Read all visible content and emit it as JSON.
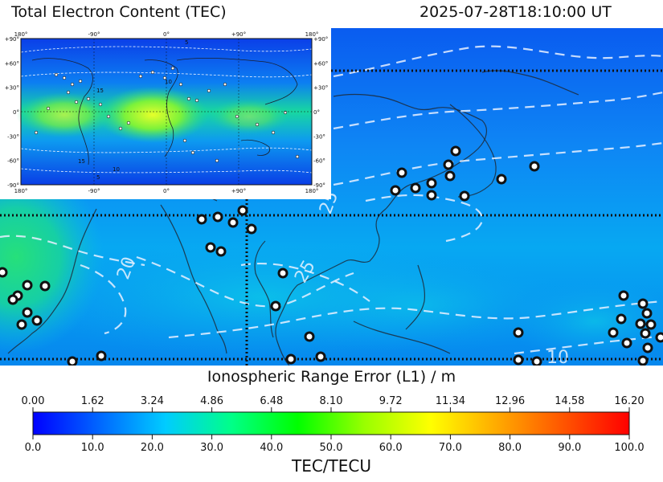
{
  "header": {
    "title": "Total Electron Content (TEC)",
    "timestamp": "2025-07-28T18:10:00 UT"
  },
  "map": {
    "contour_labels": [
      "20",
      "25",
      "25",
      "10"
    ]
  },
  "inset": {
    "lon_ticks": [
      "180°",
      "-90°",
      "0°",
      "+90°",
      "180°"
    ],
    "lat_ticks": [
      "+90°",
      "+60°",
      "+30°",
      "0°",
      "-30°",
      "-60°",
      "-90°"
    ],
    "contour_labels": [
      "5",
      "10",
      "15",
      "5",
      "10",
      "15"
    ]
  },
  "colorbar": {
    "top_title": "Ionospheric Range Error (L1) / m",
    "bottom_title": "TEC/TECU",
    "top_ticks": [
      "0.00",
      "1.62",
      "3.24",
      "4.86",
      "6.48",
      "8.10",
      "9.72",
      "11.34",
      "12.96",
      "14.58",
      "16.20"
    ],
    "bottom_ticks": [
      "0.0",
      "10.0",
      "20.0",
      "30.0",
      "40.0",
      "50.0",
      "60.0",
      "70.0",
      "80.0",
      "90.0",
      "100.0"
    ],
    "colormap_stops": [
      "#0000ff",
      "#0066ff",
      "#00ccff",
      "#00ff88",
      "#00ff00",
      "#99ff00",
      "#ffff00",
      "#ffaa00",
      "#ff5500",
      "#ff0000"
    ]
  }
}
